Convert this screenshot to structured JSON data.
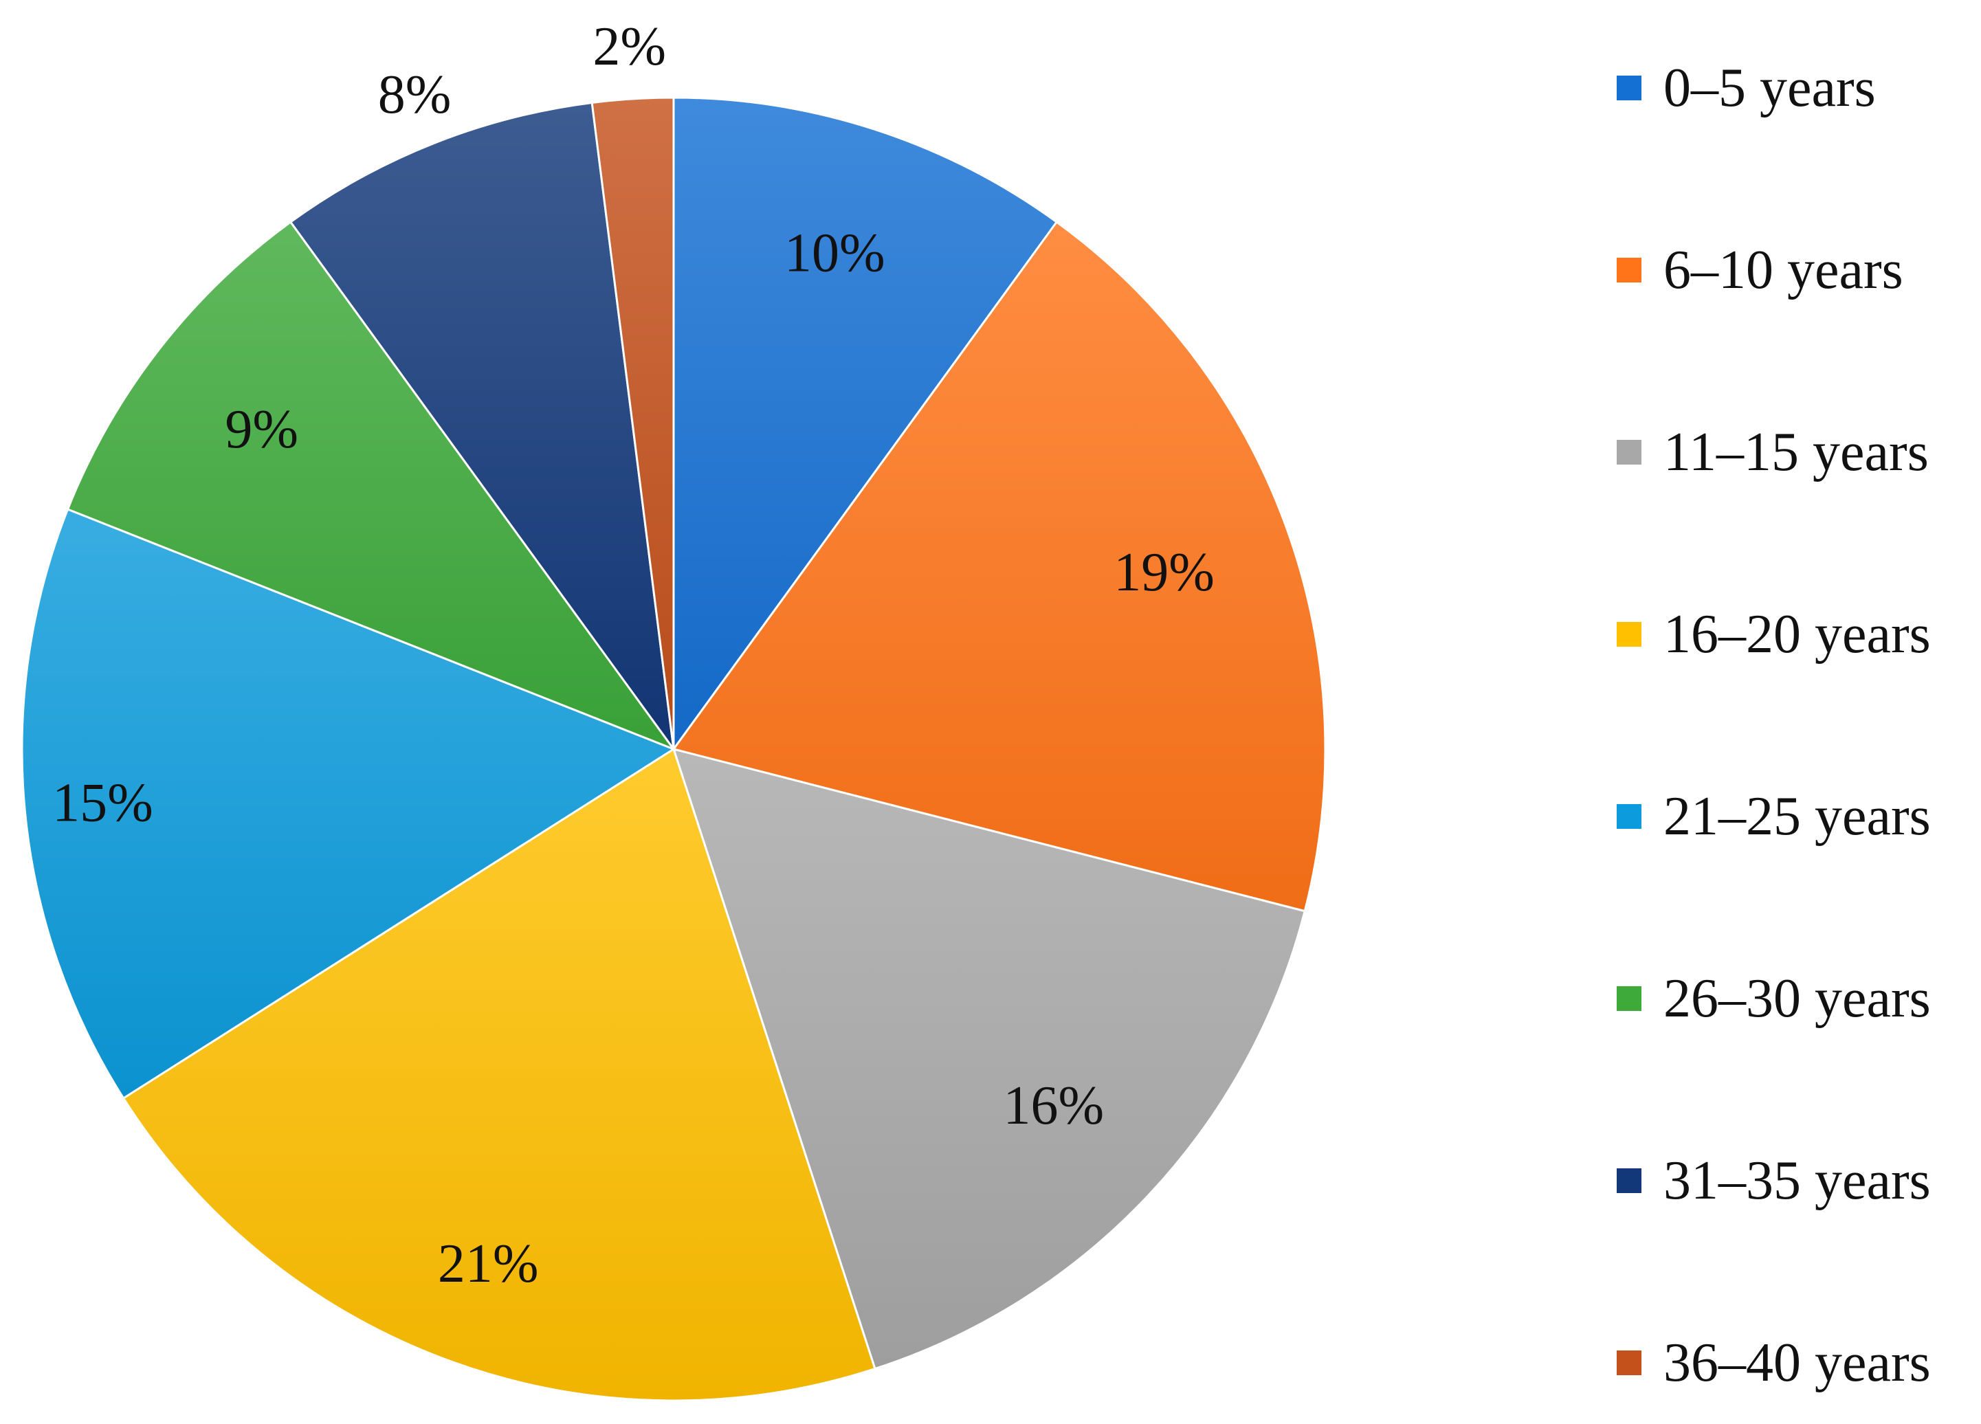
{
  "chart_data": {
    "type": "pie",
    "title": "",
    "categories": [
      "0–5 years",
      "6–10 years",
      "11–15 years",
      "16–20 years",
      "21–25 years",
      "26–30 years",
      "31–35 years",
      "36–40 years"
    ],
    "values": [
      10,
      19,
      16,
      21,
      15,
      9,
      8,
      2
    ],
    "labels": [
      "10%",
      "19%",
      "16%",
      "21%",
      "15%",
      "9%",
      "8%",
      "2%"
    ],
    "colors": [
      "#1570D4",
      "#FF7418",
      "#A8A8A8",
      "#FFC000",
      "#0C9BDC",
      "#3DAA3A",
      "#13387A",
      "#C4511C"
    ],
    "start_angle_deg": 0,
    "direction": "clockwise",
    "legend_position": "right"
  }
}
